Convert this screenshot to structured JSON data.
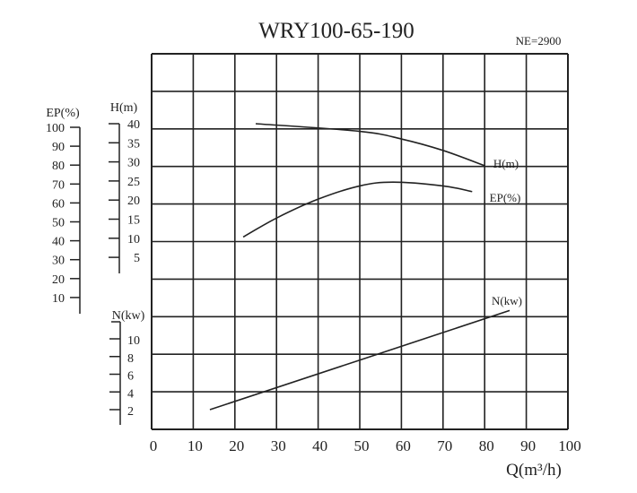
{
  "chart_data": {
    "type": "line",
    "title": "WRY100-65-190",
    "subtitle": "NE=2900",
    "xlabel": "Q(m³/h)",
    "x_ticks": [
      0,
      10,
      20,
      30,
      40,
      50,
      60,
      70,
      80,
      90,
      100
    ],
    "xlim": [
      0,
      100
    ],
    "grid": true,
    "axes": {
      "ep": {
        "label": "EP(%)",
        "ticks": [
          100,
          90,
          80,
          70,
          60,
          50,
          40,
          30,
          20,
          10
        ]
      },
      "h": {
        "label": "H(m)",
        "ticks": [
          40,
          35,
          30,
          25,
          20,
          15,
          10,
          5
        ]
      },
      "n": {
        "label": "N(kw)",
        "ticks": [
          10,
          8,
          6,
          4,
          2
        ]
      }
    },
    "series": [
      {
        "name": "H(m)",
        "axis": "h",
        "x": [
          25,
          50,
          60,
          70,
          80
        ],
        "y": [
          40,
          38,
          36,
          33,
          29
        ]
      },
      {
        "name": "EP(%)",
        "axis": "ep",
        "x": [
          22,
          30,
          40,
          50,
          58,
          70,
          77
        ],
        "y": [
          42,
          52,
          62,
          69,
          71,
          69,
          66
        ]
      },
      {
        "name": "N(kw)",
        "axis": "n",
        "x": [
          14,
          86
        ],
        "y": [
          2,
          13.2
        ]
      }
    ],
    "colors": {
      "line": "#222222"
    }
  }
}
